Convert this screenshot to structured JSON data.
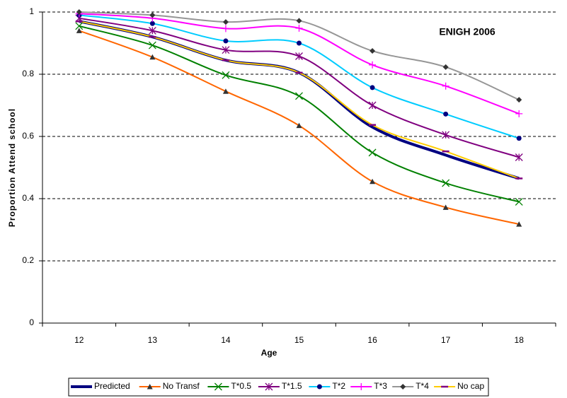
{
  "chart_data": {
    "type": "line",
    "annotation": "ENIGH 2006",
    "x_label": "Age",
    "y_label": "Proportion Attend school",
    "categories": [
      "12",
      "13",
      "14",
      "15",
      "16",
      "17",
      "18"
    ],
    "ylim": [
      0,
      1
    ],
    "yticks": [
      0,
      0.2,
      0.4,
      0.6,
      0.8,
      1
    ],
    "grid": true,
    "smooth": true,
    "legend": "bottom",
    "series": [
      {
        "name": "Predicted",
        "color": "#000080",
        "width": 4,
        "marker": "none",
        "marker_color": "#000080",
        "values": [
          0.97,
          0.92,
          0.845,
          0.805,
          0.63,
          0.54,
          0.465
        ]
      },
      {
        "name": "No Transf",
        "color": "#FF6600",
        "width": 2,
        "marker": "triangle",
        "marker_color": "#333333",
        "values": [
          0.94,
          0.855,
          0.745,
          0.635,
          0.455,
          0.372,
          0.318
        ]
      },
      {
        "name": "T*0.5",
        "color": "#008000",
        "width": 2,
        "marker": "x",
        "marker_color": "#008000",
        "values": [
          0.955,
          0.893,
          0.797,
          0.73,
          0.548,
          0.45,
          0.39
        ]
      },
      {
        "name": "T*1.5",
        "color": "#800080",
        "width": 2,
        "marker": "star",
        "marker_color": "#800080",
        "values": [
          0.98,
          0.94,
          0.878,
          0.858,
          0.7,
          0.605,
          0.533
        ]
      },
      {
        "name": "T*2",
        "color": "#00CCFF",
        "width": 2,
        "marker": "circle",
        "marker_color": "#000080",
        "values": [
          0.99,
          0.963,
          0.907,
          0.9,
          0.757,
          0.672,
          0.594
        ]
      },
      {
        "name": "T*3",
        "color": "#FF00FF",
        "width": 2,
        "marker": "plus",
        "marker_color": "#FF00FF",
        "values": [
          0.995,
          0.98,
          0.947,
          0.948,
          0.83,
          0.762,
          0.673
        ]
      },
      {
        "name": "T*4",
        "color": "#969696",
        "width": 2,
        "marker": "diamond",
        "marker_color": "#333333",
        "values": [
          1.0,
          0.99,
          0.968,
          0.972,
          0.875,
          0.823,
          0.718
        ]
      },
      {
        "name": "No cap",
        "color": "#FFCC00",
        "width": 2,
        "marker": "dash",
        "marker_color": "#800080",
        "values": [
          0.97,
          0.92,
          0.845,
          0.805,
          0.637,
          0.552,
          0.465
        ]
      }
    ]
  }
}
